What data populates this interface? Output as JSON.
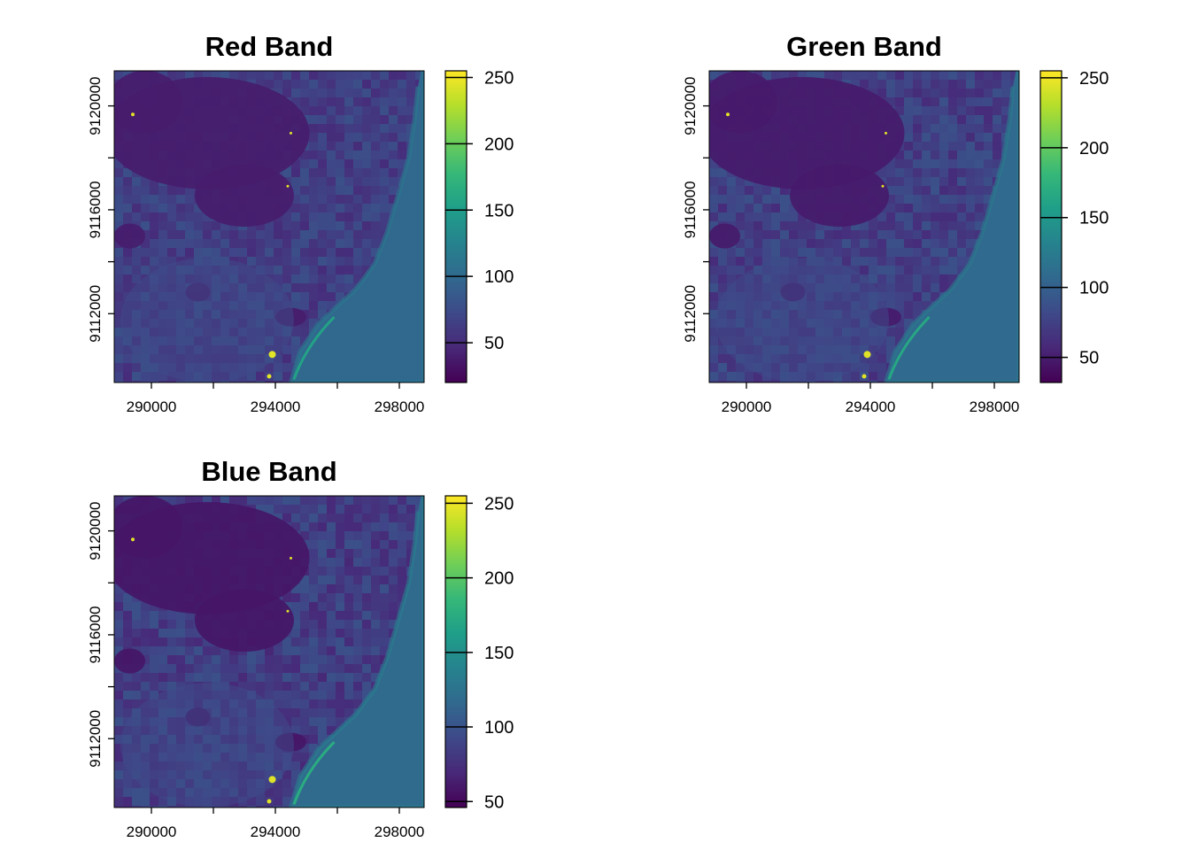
{
  "chart_data": [
    {
      "type": "heatmap",
      "title": "Red Band",
      "xlim": [
        288800,
        298800
      ],
      "ylim": [
        9109350,
        9121350
      ],
      "x_ticks": [
        290000,
        292000,
        294000,
        296000,
        298000
      ],
      "x_tick_labels": [
        "290000",
        "",
        "294000",
        "",
        "298000"
      ],
      "y_ticks": [
        9112000,
        9114000,
        9116000,
        9118000,
        9120000
      ],
      "y_tick_labels": [
        "9112000",
        "",
        "9116000",
        "",
        "9120000"
      ],
      "colorbar": {
        "colormap": "viridis",
        "range": [
          20,
          255
        ],
        "ticks": [
          50,
          100,
          150,
          200,
          250
        ],
        "tick_labels": [
          "50",
          "100",
          "150",
          "200",
          "250"
        ]
      },
      "base_level": 60
    },
    {
      "type": "heatmap",
      "title": "Green Band",
      "xlim": [
        288800,
        298800
      ],
      "ylim": [
        9109350,
        9121350
      ],
      "x_ticks": [
        290000,
        292000,
        294000,
        296000,
        298000
      ],
      "x_tick_labels": [
        "290000",
        "",
        "294000",
        "",
        "298000"
      ],
      "y_ticks": [
        9112000,
        9114000,
        9116000,
        9118000,
        9120000
      ],
      "y_tick_labels": [
        "9112000",
        "",
        "9116000",
        "",
        "9120000"
      ],
      "colorbar": {
        "colormap": "viridis",
        "range": [
          32,
          255
        ],
        "ticks": [
          50,
          100,
          150,
          200,
          250
        ],
        "tick_labels": [
          "50",
          "100",
          "150",
          "200",
          "250"
        ]
      },
      "base_level": 70
    },
    {
      "type": "heatmap",
      "title": "Blue Band",
      "xlim": [
        288800,
        298800
      ],
      "ylim": [
        9109350,
        9121350
      ],
      "x_ticks": [
        290000,
        292000,
        294000,
        296000,
        298000
      ],
      "x_tick_labels": [
        "290000",
        "",
        "294000",
        "",
        "298000"
      ],
      "y_ticks": [
        9112000,
        9114000,
        9116000,
        9118000,
        9120000
      ],
      "y_tick_labels": [
        "9112000",
        "",
        "9116000",
        "",
        "9120000"
      ],
      "colorbar": {
        "colormap": "viridis",
        "range": [
          46,
          255
        ],
        "ticks": [
          50,
          100,
          150,
          200,
          250
        ],
        "tick_labels": [
          "50",
          "100",
          "150",
          "200",
          "250"
        ]
      },
      "base_level": 80
    }
  ]
}
